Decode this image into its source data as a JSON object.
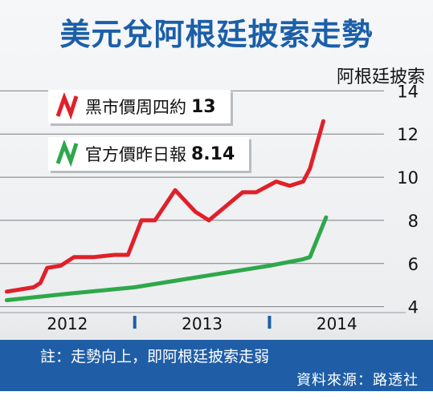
{
  "title": "美元兌阿根廷披索走勢",
  "legend": [
    {
      "label": "黑市價周四約",
      "value": "13",
      "color": "#e0202a"
    },
    {
      "label": "官方價昨日報",
      "value": "8.14",
      "color": "#2ea84a"
    }
  ],
  "footer": {
    "note": "註：走勢向上，即阿根廷披索走弱",
    "source": "資料來源：路透社"
  },
  "chart_data": {
    "type": "line",
    "ylabel": "阿根廷披索",
    "ylim": [
      3.8,
      14.2
    ],
    "yticks": [
      4,
      6,
      8,
      10,
      12,
      14
    ],
    "xlim": [
      2011.5,
      2014.35
    ],
    "xticks": [
      {
        "label": "2012",
        "x": 2012.0
      },
      {
        "label": "2013",
        "x": 2013.0
      },
      {
        "label": "2014",
        "x": 2014.0
      }
    ],
    "xdividers": [
      2012.5,
      2013.5
    ],
    "grid": true,
    "series": [
      {
        "name": "黑市價",
        "color": "#e0202a",
        "points": [
          [
            2011.55,
            4.7
          ],
          [
            2011.65,
            4.8
          ],
          [
            2011.75,
            4.9
          ],
          [
            2011.8,
            5.1
          ],
          [
            2011.85,
            5.8
          ],
          [
            2011.95,
            5.9
          ],
          [
            2012.05,
            6.3
          ],
          [
            2012.2,
            6.3
          ],
          [
            2012.35,
            6.4
          ],
          [
            2012.45,
            6.4
          ],
          [
            2012.55,
            8.0
          ],
          [
            2012.65,
            8.0
          ],
          [
            2012.8,
            9.4
          ],
          [
            2012.95,
            8.4
          ],
          [
            2013.05,
            8.0
          ],
          [
            2013.3,
            9.3
          ],
          [
            2013.4,
            9.3
          ],
          [
            2013.55,
            9.8
          ],
          [
            2013.65,
            9.6
          ],
          [
            2013.75,
            9.8
          ],
          [
            2013.8,
            10.4
          ],
          [
            2013.9,
            12.6
          ]
        ]
      },
      {
        "name": "官方價",
        "color": "#2ea84a",
        "points": [
          [
            2011.55,
            4.3
          ],
          [
            2012.0,
            4.6
          ],
          [
            2012.5,
            4.9
          ],
          [
            2013.0,
            5.4
          ],
          [
            2013.5,
            5.9
          ],
          [
            2013.75,
            6.2
          ],
          [
            2013.8,
            6.3
          ],
          [
            2013.92,
            8.14
          ]
        ]
      }
    ]
  }
}
